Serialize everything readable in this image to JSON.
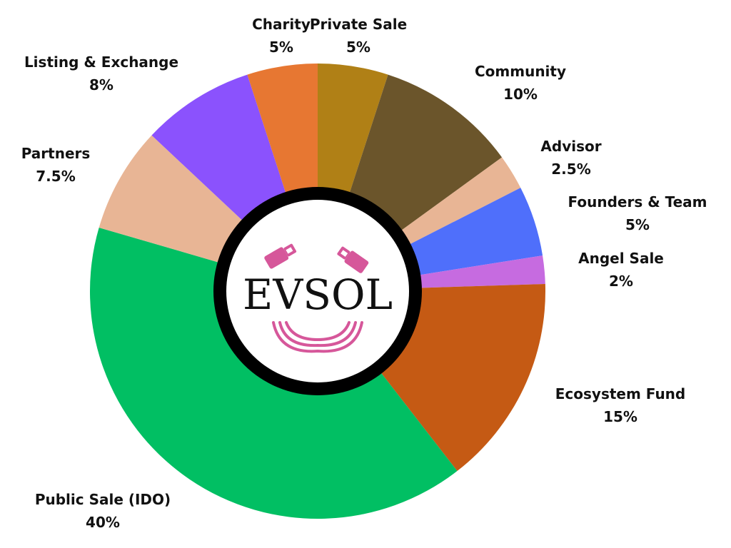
{
  "chart_data": {
    "type": "pie",
    "variant": "donut",
    "title": "",
    "center_logo_text": "EVSOL",
    "slices": [
      {
        "label": "Private Sale",
        "value": 5,
        "value_label": "5%",
        "color": "#b08016"
      },
      {
        "label": "Community",
        "value": 10,
        "value_label": "10%",
        "color": "#6b552b"
      },
      {
        "label": "Advisor",
        "value": 2.5,
        "value_label": "2.5%",
        "color": "#e8b595"
      },
      {
        "label": "Founders & Team",
        "value": 5,
        "value_label": "5%",
        "color": "#4f6ffb"
      },
      {
        "label": "Angel Sale",
        "value": 2,
        "value_label": "2%",
        "color": "#c66be0"
      },
      {
        "label": "Ecosystem Fund",
        "value": 15,
        "value_label": "15%",
        "color": "#c55a14"
      },
      {
        "label": "Public Sale (IDO)",
        "value": 40,
        "value_label": "40%",
        "color": "#01bf63"
      },
      {
        "label": "Partners",
        "value": 7.5,
        "value_label": "7.5%",
        "color": "#e8b595"
      },
      {
        "label": "Listing & Exchange",
        "value": 8,
        "value_label": "8%",
        "color": "#8b52fd"
      },
      {
        "label": "Charity",
        "value": 5,
        "value_label": "5%",
        "color": "#e77732"
      }
    ],
    "logo_accent_color": "#d6579a",
    "ring_color": "#000000"
  }
}
